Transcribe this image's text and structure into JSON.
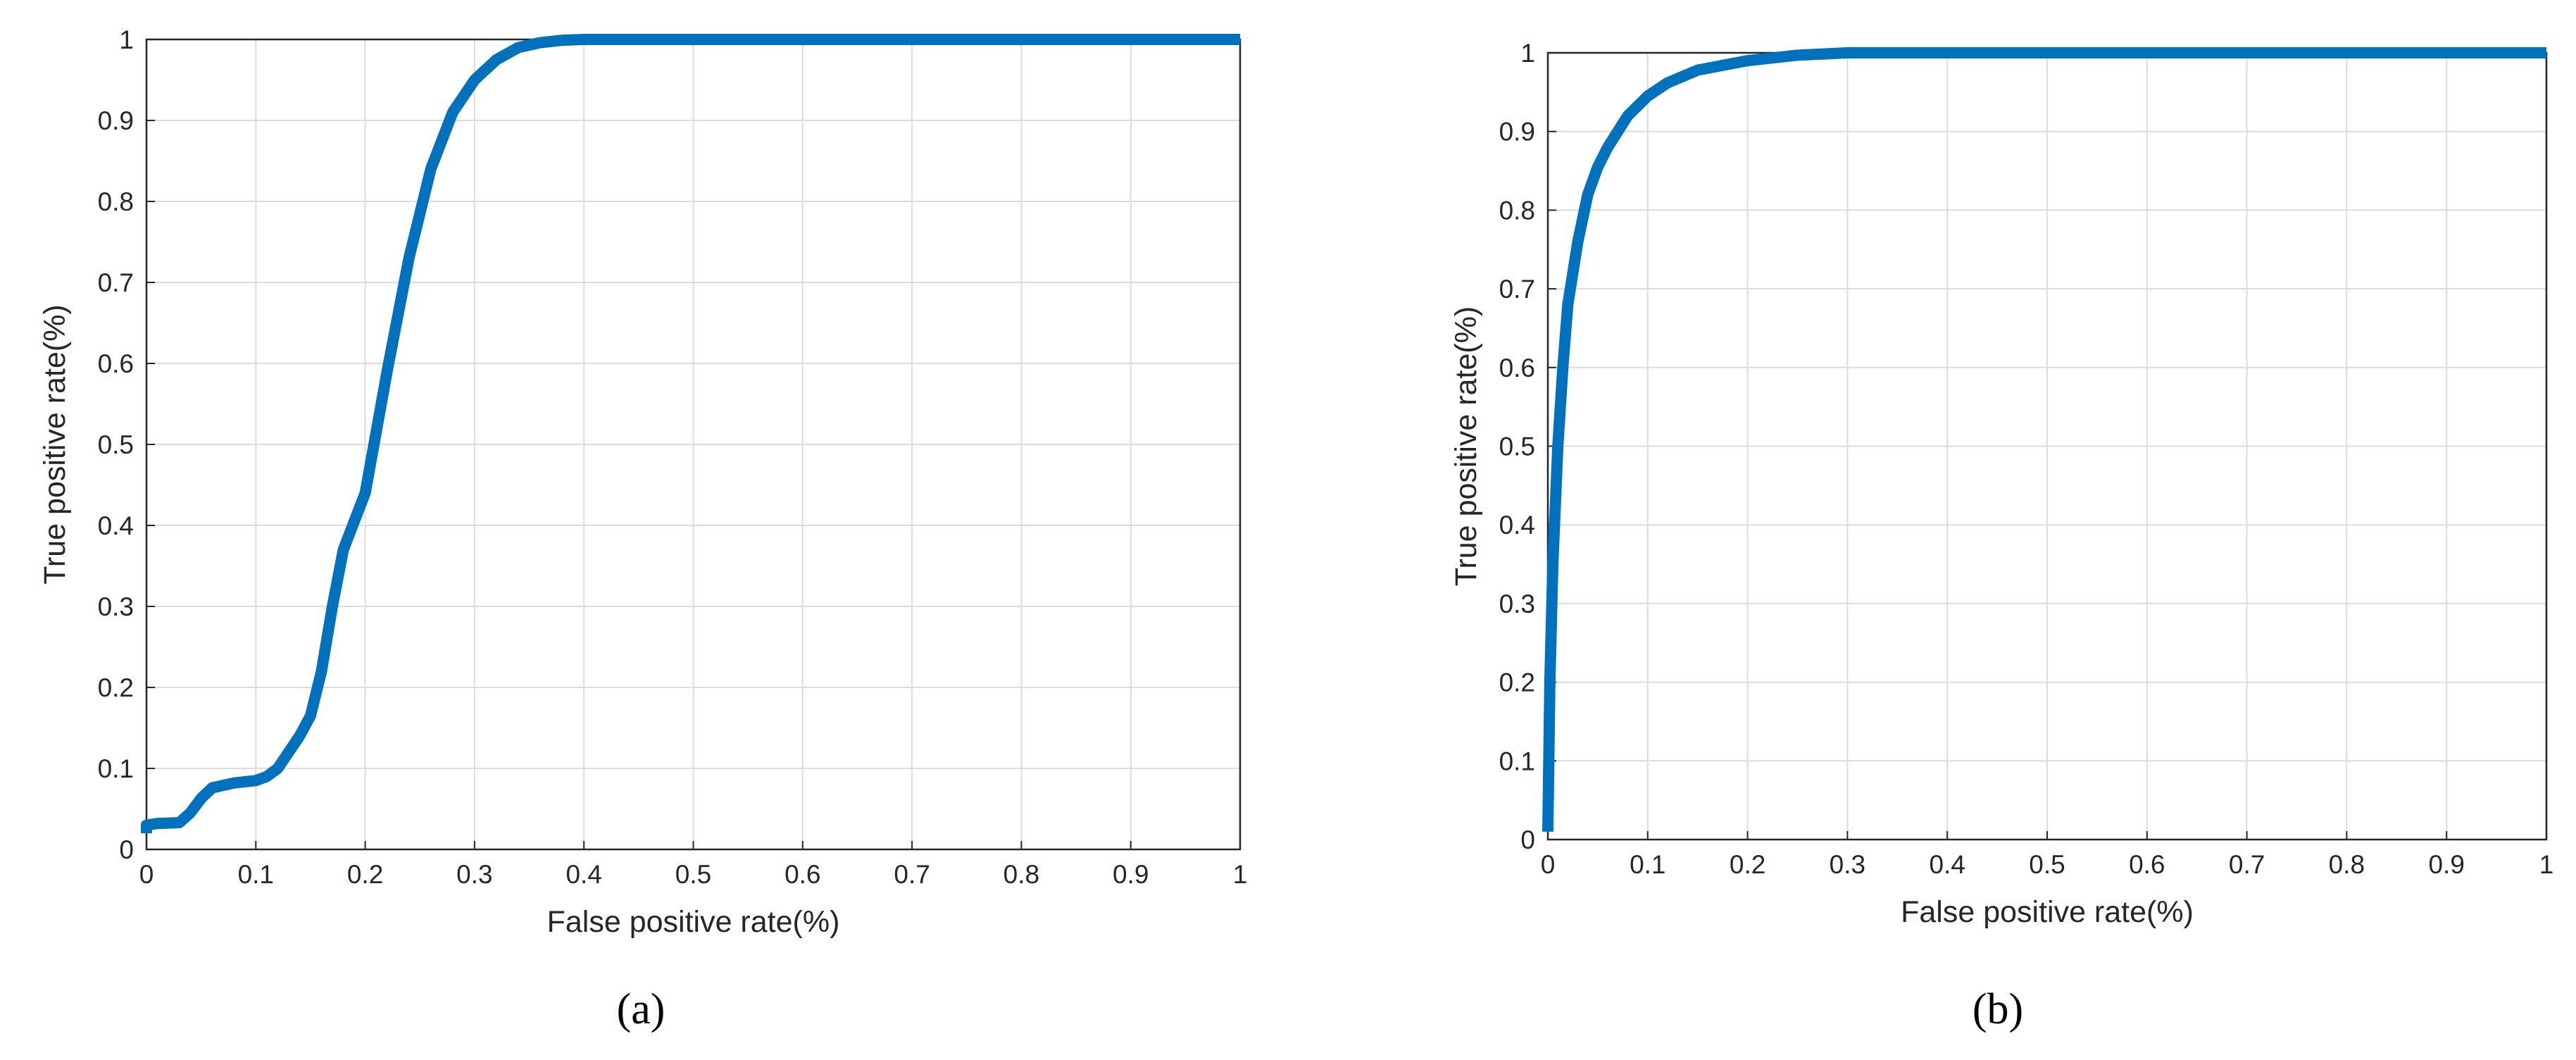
{
  "chart_data": [
    {
      "type": "line",
      "caption": "(a)",
      "xlabel": "False positive rate(%)",
      "ylabel": "True positive rate(%)",
      "xlim": [
        0,
        1
      ],
      "ylim": [
        0,
        1
      ],
      "xticks": [
        0,
        0.1,
        0.2,
        0.3,
        0.4,
        0.5,
        0.6,
        0.7,
        0.8,
        0.9,
        1
      ],
      "yticks": [
        0,
        0.1,
        0.2,
        0.3,
        0.4,
        0.5,
        0.6,
        0.7,
        0.8,
        0.9,
        1
      ],
      "grid": true,
      "series": [
        {
          "color": "#0072bd",
          "x": [
            0,
            0,
            0.01,
            0.03,
            0.04,
            0.05,
            0.06,
            0.08,
            0.1,
            0.11,
            0.12,
            0.13,
            0.14,
            0.15,
            0.16,
            0.17,
            0.18,
            0.2,
            0.22,
            0.24,
            0.26,
            0.28,
            0.3,
            0.32,
            0.34,
            0.36,
            0.38,
            0.4,
            0.5,
            0.7,
            1
          ],
          "values": [
            0.02,
            0.03,
            0.032,
            0.033,
            0.045,
            0.063,
            0.076,
            0.082,
            0.085,
            0.09,
            0.1,
            0.12,
            0.14,
            0.165,
            0.22,
            0.3,
            0.37,
            0.44,
            0.59,
            0.73,
            0.84,
            0.91,
            0.95,
            0.975,
            0.99,
            0.996,
            0.999,
            1,
            1,
            1,
            1
          ]
        }
      ]
    },
    {
      "type": "line",
      "caption": "(b)",
      "xlabel": "False positive rate(%)",
      "ylabel": "True positive rate(%)",
      "xlim": [
        0,
        1
      ],
      "ylim": [
        0,
        1
      ],
      "xticks": [
        0,
        0.1,
        0.2,
        0.3,
        0.4,
        0.5,
        0.6,
        0.7,
        0.8,
        0.9,
        1
      ],
      "yticks": [
        0,
        0.1,
        0.2,
        0.3,
        0.4,
        0.5,
        0.6,
        0.7,
        0.8,
        0.9,
        1
      ],
      "grid": true,
      "series": [
        {
          "color": "#0072bd",
          "x": [
            0,
            0.002,
            0.005,
            0.01,
            0.015,
            0.02,
            0.03,
            0.04,
            0.05,
            0.06,
            0.08,
            0.1,
            0.12,
            0.15,
            0.2,
            0.25,
            0.3,
            0.5,
            1
          ],
          "values": [
            0.01,
            0.2,
            0.35,
            0.5,
            0.6,
            0.68,
            0.76,
            0.82,
            0.855,
            0.88,
            0.92,
            0.945,
            0.962,
            0.978,
            0.99,
            0.997,
            1,
            1,
            1
          ]
        }
      ]
    }
  ]
}
